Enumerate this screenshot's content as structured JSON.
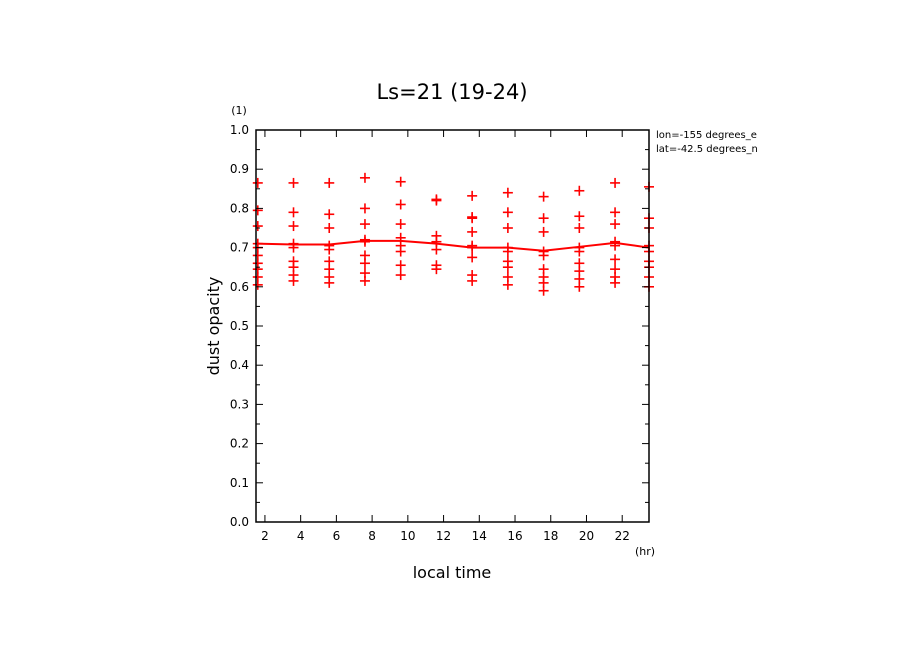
{
  "chart_data": {
    "type": "scatter",
    "title": "Ls=21 (19-24)",
    "xlabel": "local time",
    "ylabel": "dust opacity",
    "x_unit": "(hr)",
    "y_unit": "(1)",
    "xlim": [
      1.5,
      23.5
    ],
    "ylim": [
      0.0,
      1.0
    ],
    "x_ticks": [
      "2",
      "4",
      "6",
      "8",
      "10",
      "12",
      "14",
      "16",
      "18",
      "20",
      "22"
    ],
    "y_ticks": [
      "0.0",
      "0.1",
      "0.2",
      "0.3",
      "0.4",
      "0.5",
      "0.6",
      "0.7",
      "0.8",
      "0.9",
      "1.0"
    ],
    "annotations": [
      "lon=-155 degrees_e",
      "lat=-42.5 degrees_n"
    ],
    "colors": {
      "series": "#ff0000",
      "axes": "#000000"
    },
    "points": [
      {
        "x": 1.6,
        "y": [
          0.865,
          0.795,
          0.755,
          0.71,
          0.7,
          0.68,
          0.66,
          0.645,
          0.625,
          0.605
        ]
      },
      {
        "x": 3.6,
        "y": [
          0.865,
          0.79,
          0.755,
          0.71,
          0.7,
          0.665,
          0.65,
          0.63,
          0.615
        ]
      },
      {
        "x": 5.6,
        "y": [
          0.865,
          0.785,
          0.75,
          0.705,
          0.695,
          0.665,
          0.645,
          0.625,
          0.61
        ]
      },
      {
        "x": 7.6,
        "y": [
          0.878,
          0.8,
          0.76,
          0.72,
          0.715,
          0.68,
          0.66,
          0.635,
          0.615
        ]
      },
      {
        "x": 9.6,
        "y": [
          0.868,
          0.81,
          0.76,
          0.725,
          0.705,
          0.69,
          0.655,
          0.63
        ]
      },
      {
        "x": 11.6,
        "y": [
          0.823,
          0.82,
          0.73,
          0.715,
          0.695,
          0.655,
          0.645
        ]
      },
      {
        "x": 13.6,
        "y": [
          0.832,
          0.778,
          0.775,
          0.74,
          0.705,
          0.7,
          0.675,
          0.63,
          0.615
        ]
      },
      {
        "x": 15.6,
        "y": [
          0.84,
          0.79,
          0.75,
          0.7,
          0.69,
          0.665,
          0.65,
          0.625,
          0.605
        ]
      },
      {
        "x": 17.6,
        "y": [
          0.83,
          0.775,
          0.74,
          0.69,
          0.68,
          0.645,
          0.625,
          0.61,
          0.59
        ]
      },
      {
        "x": 19.6,
        "y": [
          0.845,
          0.78,
          0.75,
          0.7,
          0.69,
          0.66,
          0.64,
          0.62,
          0.6
        ]
      },
      {
        "x": 21.6,
        "y": [
          0.865,
          0.79,
          0.76,
          0.715,
          0.705,
          0.67,
          0.645,
          0.625,
          0.61
        ]
      },
      {
        "x": 23.5,
        "y": [
          0.855,
          0.775,
          0.75,
          0.705,
          0.69,
          0.665,
          0.65,
          0.625,
          0.6
        ]
      }
    ],
    "mean_line": {
      "x": [
        1.5,
        3.6,
        5.6,
        7.6,
        9.6,
        11.6,
        13.6,
        15.6,
        17.6,
        19.6,
        21.6,
        23.5
      ],
      "y": [
        0.71,
        0.708,
        0.708,
        0.717,
        0.717,
        0.71,
        0.7,
        0.7,
        0.692,
        0.702,
        0.712,
        0.7
      ]
    }
  }
}
